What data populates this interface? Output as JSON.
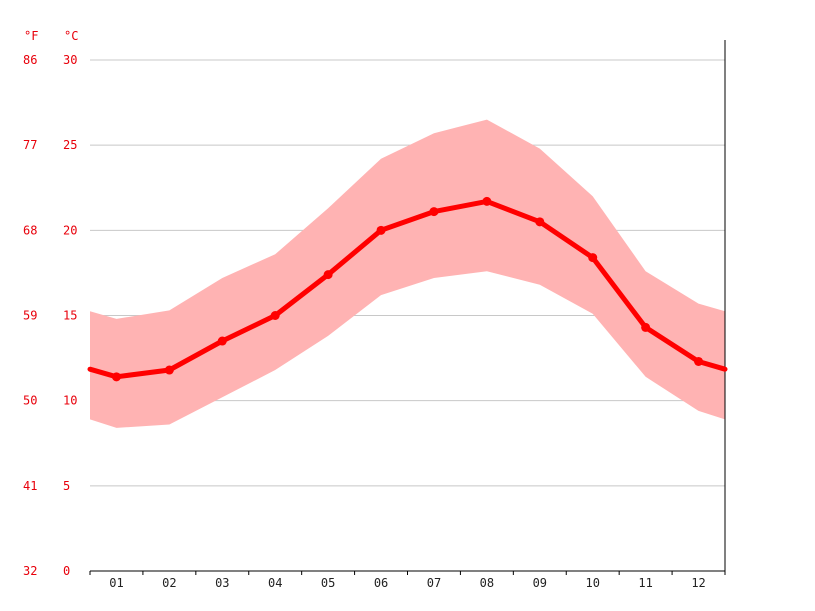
{
  "chart_data": {
    "type": "area",
    "x": [
      "01",
      "02",
      "03",
      "04",
      "05",
      "06",
      "07",
      "08",
      "09",
      "10",
      "11",
      "12"
    ],
    "series": [
      {
        "role": "mean",
        "values": [
          11.4,
          11.8,
          13.5,
          15.0,
          17.4,
          20.0,
          21.1,
          21.7,
          20.5,
          18.4,
          14.3,
          12.3
        ]
      },
      {
        "role": "max",
        "values": [
          14.8,
          15.3,
          17.2,
          18.6,
          21.3,
          24.2,
          25.7,
          26.5,
          24.8,
          22.0,
          17.6,
          15.7
        ]
      },
      {
        "role": "min",
        "values": [
          8.4,
          8.6,
          10.2,
          11.8,
          13.8,
          16.2,
          17.2,
          17.6,
          16.8,
          15.1,
          11.4,
          9.4
        ]
      }
    ],
    "y_c_ticks": [
      0,
      5,
      10,
      15,
      20,
      25,
      30
    ],
    "y_f_ticks": [
      "32",
      "41",
      "50",
      "59",
      "68",
      "77",
      "86"
    ],
    "unit_c": "°C",
    "unit_f": "°F",
    "ylim": [
      0,
      30
    ],
    "grid": true,
    "colors": {
      "line": "#ff0000",
      "band": "#ffb3b3",
      "ticks": "#e8000b"
    }
  }
}
